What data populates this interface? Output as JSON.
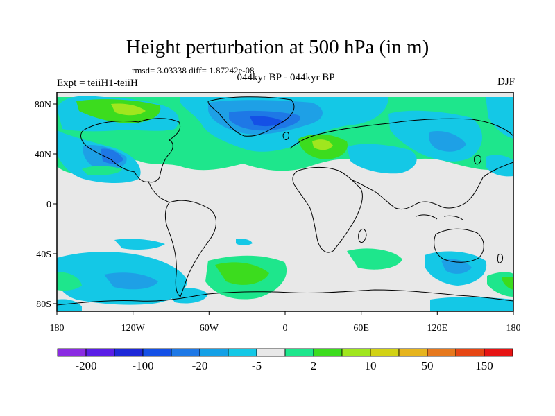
{
  "figure": {
    "title": "Height perturbation at 500 hPa (in m)",
    "stats": "rmsd= 3.03338 diff= 1.87242e-08",
    "period": "044kyr BP - 044kyr BP",
    "experiment": "Expt = teiiH1-teiiH",
    "season": "DJF"
  },
  "axes": {
    "lon_ticks": [
      "180",
      "120W",
      "60W",
      "0",
      "60E",
      "120E",
      "180"
    ],
    "lat_ticks": [
      "80N",
      "40N",
      "0",
      "40S",
      "80S"
    ],
    "lon_range": [
      -180,
      180
    ],
    "lat_range": [
      -90,
      90
    ]
  },
  "colorbar": {
    "colors": [
      "#8a2be2",
      "#5a1ee6",
      "#1e28d8",
      "#1450e6",
      "#1e78e6",
      "#14a0e6",
      "#14c8e6",
      "#e8e8e8",
      "#1ee68c",
      "#3cdc1e",
      "#a0e61e",
      "#d2d214",
      "#e6b41e",
      "#e6781e",
      "#e64614",
      "#e61414"
    ],
    "labels": [
      "-200",
      "-100",
      "-20",
      "-5",
      "2",
      "10",
      "50",
      "150"
    ]
  },
  "map_colors": {
    "background": "#e8e8e8",
    "light_blue": "#14c8e6",
    "mid_blue": "#1ea0e6",
    "blue": "#1e78e6",
    "dark_blue": "#1450e6",
    "green_light": "#1ee68c",
    "green": "#3cdc1e",
    "yellow_green": "#a0e61e",
    "coastline": "#000000"
  }
}
